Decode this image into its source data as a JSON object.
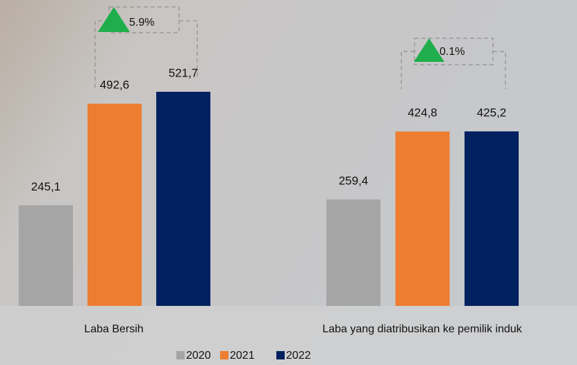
{
  "chart_data": {
    "type": "bar",
    "categories": [
      "Laba Bersih",
      "Laba yang diatribusikan ke pemilik induk"
    ],
    "series": [
      {
        "name": "2020",
        "color": "#a5a5a5",
        "values": [
          245.1,
          259.4
        ],
        "value_labels": [
          "245,1",
          "259,4"
        ]
      },
      {
        "name": "2021",
        "color": "#ed7d31",
        "values": [
          492.6,
          424.8
        ],
        "value_labels": [
          "492,6",
          "424,8"
        ]
      },
      {
        "name": "2022",
        "color": "#002060",
        "values": [
          521.7,
          425.2
        ],
        "value_labels": [
          "521,7",
          "425,2"
        ]
      }
    ],
    "annotations": [
      "5.9%",
      "0.1%"
    ]
  }
}
